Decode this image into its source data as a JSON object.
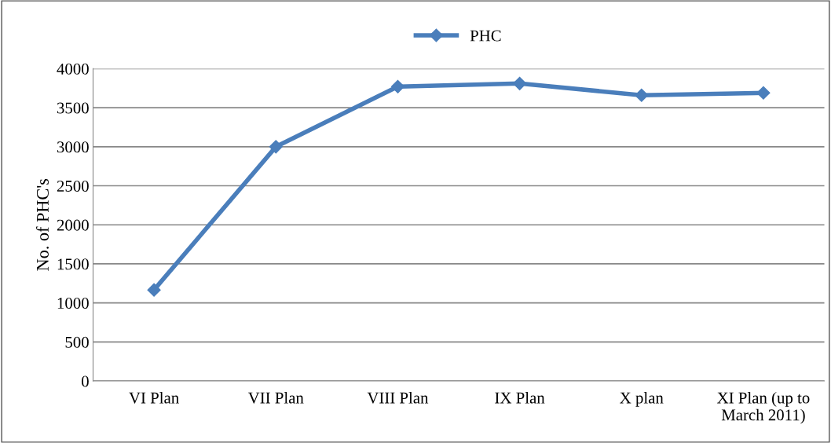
{
  "chart_data": {
    "type": "line",
    "ylabel": "No. of PHC's",
    "categories": [
      "VI Plan",
      "VII Plan",
      "VIII Plan",
      "IX Plan",
      "X plan",
      "XI Plan (up to\nMarch 2011)"
    ],
    "series": [
      {
        "name": "PHC",
        "color": "#4a7ebb",
        "values": [
          1166,
          3000,
          3770,
          3810,
          3660,
          3690
        ]
      }
    ],
    "ylim": [
      0,
      4000
    ],
    "yticks": [
      0,
      500,
      1000,
      1500,
      2000,
      2500,
      3000,
      3500,
      4000
    ],
    "grid": "y",
    "legend": "top",
    "marker": "diamond",
    "line_style": "solid"
  }
}
